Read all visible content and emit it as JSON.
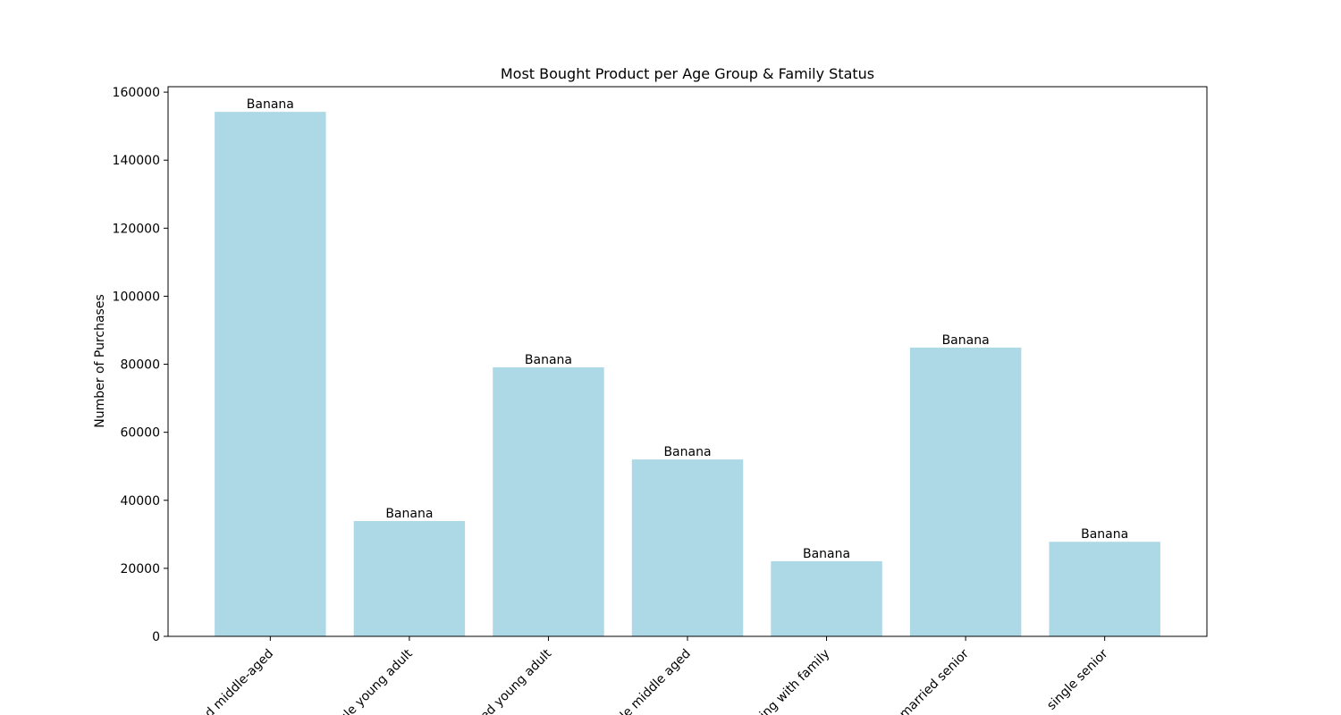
{
  "chart_data": {
    "type": "bar",
    "title": "Most Bought Product per Age Group & Family Status",
    "y_label": "Number of Purchases",
    "categories": [
      "married middle-aged",
      "single young adult",
      "married young adult",
      "single middle aged",
      "living with family",
      "married senior",
      "single senior"
    ],
    "values": [
      154200,
      33900,
      79100,
      52000,
      22100,
      84900,
      27800
    ],
    "bar_labels": [
      "Banana",
      "Banana",
      "Banana",
      "Banana",
      "Banana",
      "Banana",
      "Banana"
    ],
    "color": "#add8e6",
    "ylim": [
      0,
      161600
    ],
    "yticks": [
      0,
      20000,
      40000,
      60000,
      80000,
      100000,
      120000,
      140000,
      160000
    ]
  }
}
